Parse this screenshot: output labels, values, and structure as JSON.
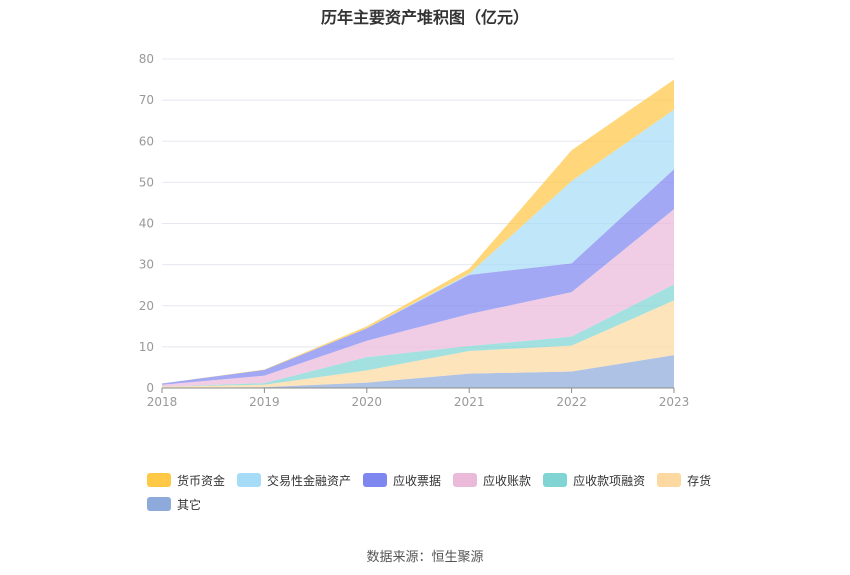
{
  "chart_data": {
    "type": "area",
    "stacked": true,
    "title": "历年主要资产堆积图（亿元）",
    "categories": [
      "2018",
      "2019",
      "2020",
      "2021",
      "2022",
      "2023"
    ],
    "ylim": [
      0,
      80
    ],
    "yticks": [
      0,
      10,
      20,
      30,
      40,
      50,
      60,
      70,
      80
    ],
    "grid": true,
    "legend_position": "bottom",
    "series": [
      {
        "name": "其它",
        "color": "#8EAADB",
        "values": [
          0.1,
          0.2,
          1.3,
          3.5,
          4.0,
          8.0
        ]
      },
      {
        "name": "存货",
        "color": "#FCD9A1",
        "values": [
          0.2,
          0.6,
          3.0,
          5.5,
          6.3,
          13.3
        ]
      },
      {
        "name": "应收款项融资",
        "color": "#80D4D4",
        "values": [
          0.0,
          0.4,
          3.2,
          1.2,
          2.2,
          3.9
        ]
      },
      {
        "name": "应收账款",
        "color": "#EBBADB",
        "values": [
          0.5,
          1.8,
          4.0,
          7.8,
          10.8,
          18.3
        ]
      },
      {
        "name": "应收票据",
        "color": "#7E86F0",
        "values": [
          0.3,
          1.4,
          3.0,
          9.5,
          7.0,
          9.7
        ]
      },
      {
        "name": "交易性金融资产",
        "color": "#A6DCF7",
        "values": [
          0.0,
          0.0,
          0.0,
          0.3,
          20.0,
          14.5
        ]
      },
      {
        "name": "货币资金",
        "color": "#FFC846",
        "values": [
          0.0,
          0.1,
          0.5,
          1.2,
          7.5,
          7.3
        ]
      }
    ],
    "legend_order": [
      "货币资金",
      "交易性金融资产",
      "应收票据",
      "应收账款",
      "应收款项融资",
      "存货",
      "其它"
    ]
  },
  "footer": {
    "source": "数据来源：恒生聚源"
  }
}
